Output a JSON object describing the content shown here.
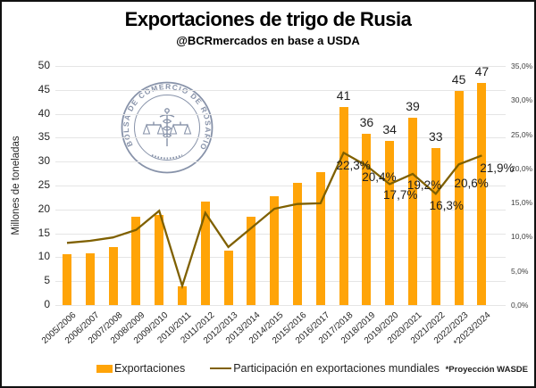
{
  "chart_data": {
    "type": "bar+line",
    "title": "Exportaciones de trigo de Rusia",
    "subtitle": "@BCRmercados en base a USDA",
    "footnote": "*Proyección WASDE",
    "watermark": "BOLSA DE COMERCIO DE ROSARIO",
    "grid": true,
    "legend_position": "bottom",
    "categories": [
      "2005/2006",
      "2006/2007",
      "2007/2008",
      "2008/2009",
      "2009/2010",
      "2010/2011",
      "2011/2012",
      "2012/2013",
      "2013/2014",
      "2014/2015",
      "2015/2016",
      "2016/2017",
      "2017/2018",
      "2018/2019",
      "2019/2020",
      "2020/2021",
      "2021/2022",
      "2022/2023",
      "*2023/2024"
    ],
    "series": [
      {
        "name": "Exportaciones",
        "type": "bar",
        "axis": "left",
        "color": "#FFA408",
        "values": [
          10.6,
          10.8,
          12.1,
          18.4,
          18.8,
          4.0,
          21.6,
          11.3,
          18.5,
          22.8,
          25.5,
          27.8,
          41.4,
          35.9,
          34.4,
          39.1,
          32.9,
          44.7,
          46.5
        ],
        "labels": [
          "",
          "",
          "",
          "",
          "",
          "",
          "",
          "",
          "",
          "",
          "",
          "",
          "41",
          "36",
          "34",
          "39",
          "33",
          "45",
          "47"
        ]
      },
      {
        "name": "Participación en exportaciones mundiales",
        "type": "line",
        "axis": "right",
        "color": "#7F6000",
        "values": [
          9.1,
          9.4,
          9.9,
          11.0,
          13.8,
          2.8,
          13.5,
          8.5,
          11.3,
          14.1,
          14.8,
          14.9,
          22.3,
          20.4,
          17.7,
          19.2,
          16.3,
          20.6,
          21.9
        ],
        "labels": [
          "",
          "",
          "",
          "",
          "",
          "",
          "",
          "",
          "",
          "",
          "",
          "",
          "22,3%",
          "20,4%",
          "17,7%",
          "19,2%",
          "16,3%",
          "20,6%",
          "21,9%"
        ],
        "label_offsets": {
          "12": [
            11,
            16
          ],
          "13": [
            14,
            14
          ],
          "14": [
            12,
            14
          ],
          "15": [
            13,
            14
          ],
          "16": [
            12,
            15
          ],
          "17": [
            14,
            23
          ],
          "18": [
            17,
            16
          ]
        }
      }
    ],
    "left_axis": {
      "label": "Millones de toneladas",
      "min": 0,
      "max": 50,
      "step": 5,
      "tick_labels": [
        "0",
        "5",
        "10",
        "15",
        "20",
        "25",
        "30",
        "35",
        "40",
        "45",
        "50"
      ]
    },
    "right_axis": {
      "min": 0,
      "max": 35,
      "step": 5,
      "tick_labels": [
        "0,0%",
        "5,0%",
        "10,0%",
        "15,0%",
        "20,0%",
        "25,0%",
        "30,0%",
        "35,0%"
      ]
    },
    "colors": {
      "bar": "#FFA408",
      "line": "#7F6000",
      "grid": "#e5e5e5",
      "watermark": "#6a7894"
    }
  }
}
